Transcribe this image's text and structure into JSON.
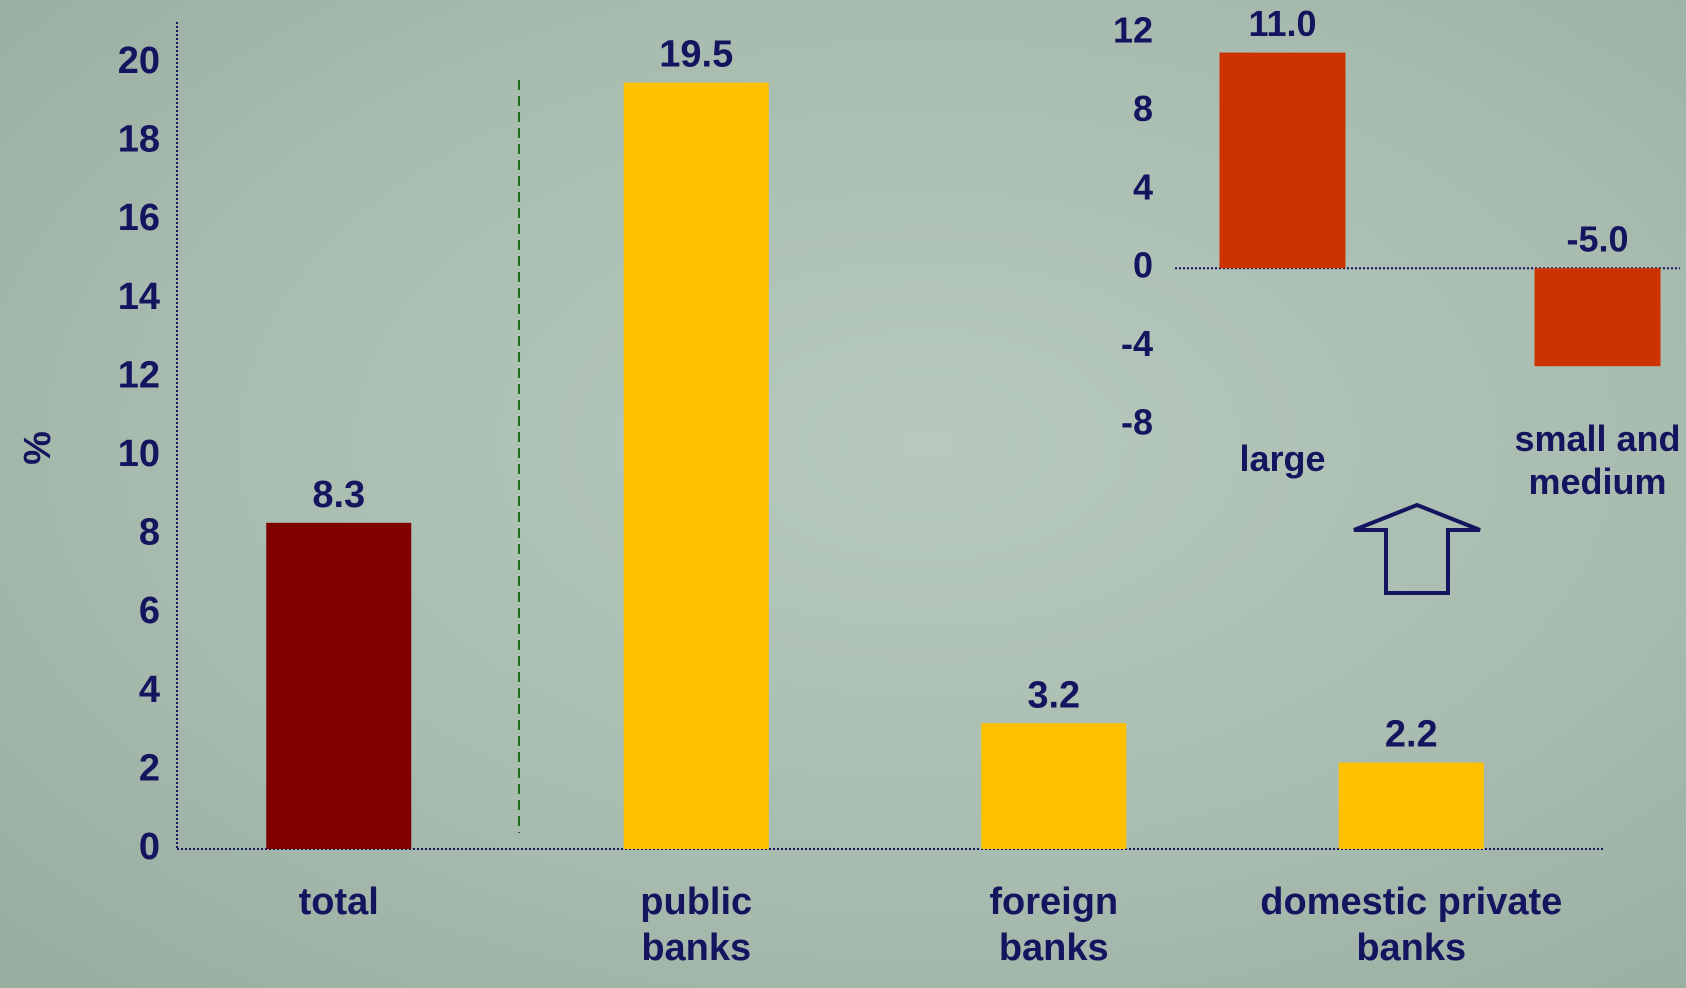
{
  "chart_data": [
    {
      "type": "bar",
      "y_label": "%",
      "categories": [
        "total",
        "public banks",
        "foreign banks",
        "domestic private banks"
      ],
      "values": [
        8.3,
        19.5,
        3.2,
        2.2
      ],
      "colors": [
        "#800000",
        "#ffc000",
        "#ffc000",
        "#ffc000"
      ],
      "ylim": [
        0,
        20
      ],
      "yticks": [
        0,
        2,
        4,
        6,
        8,
        10,
        12,
        14,
        16,
        18,
        20
      ]
    },
    {
      "type": "bar",
      "categories": [
        "large",
        "small and medium"
      ],
      "values": [
        11,
        -5
      ],
      "value_labels": [
        "11.0",
        "-5.0"
      ],
      "color": "#cc3300",
      "ylim": [
        -8,
        12
      ],
      "yticks": [
        12,
        8,
        4,
        0,
        -4,
        -8
      ]
    }
  ]
}
